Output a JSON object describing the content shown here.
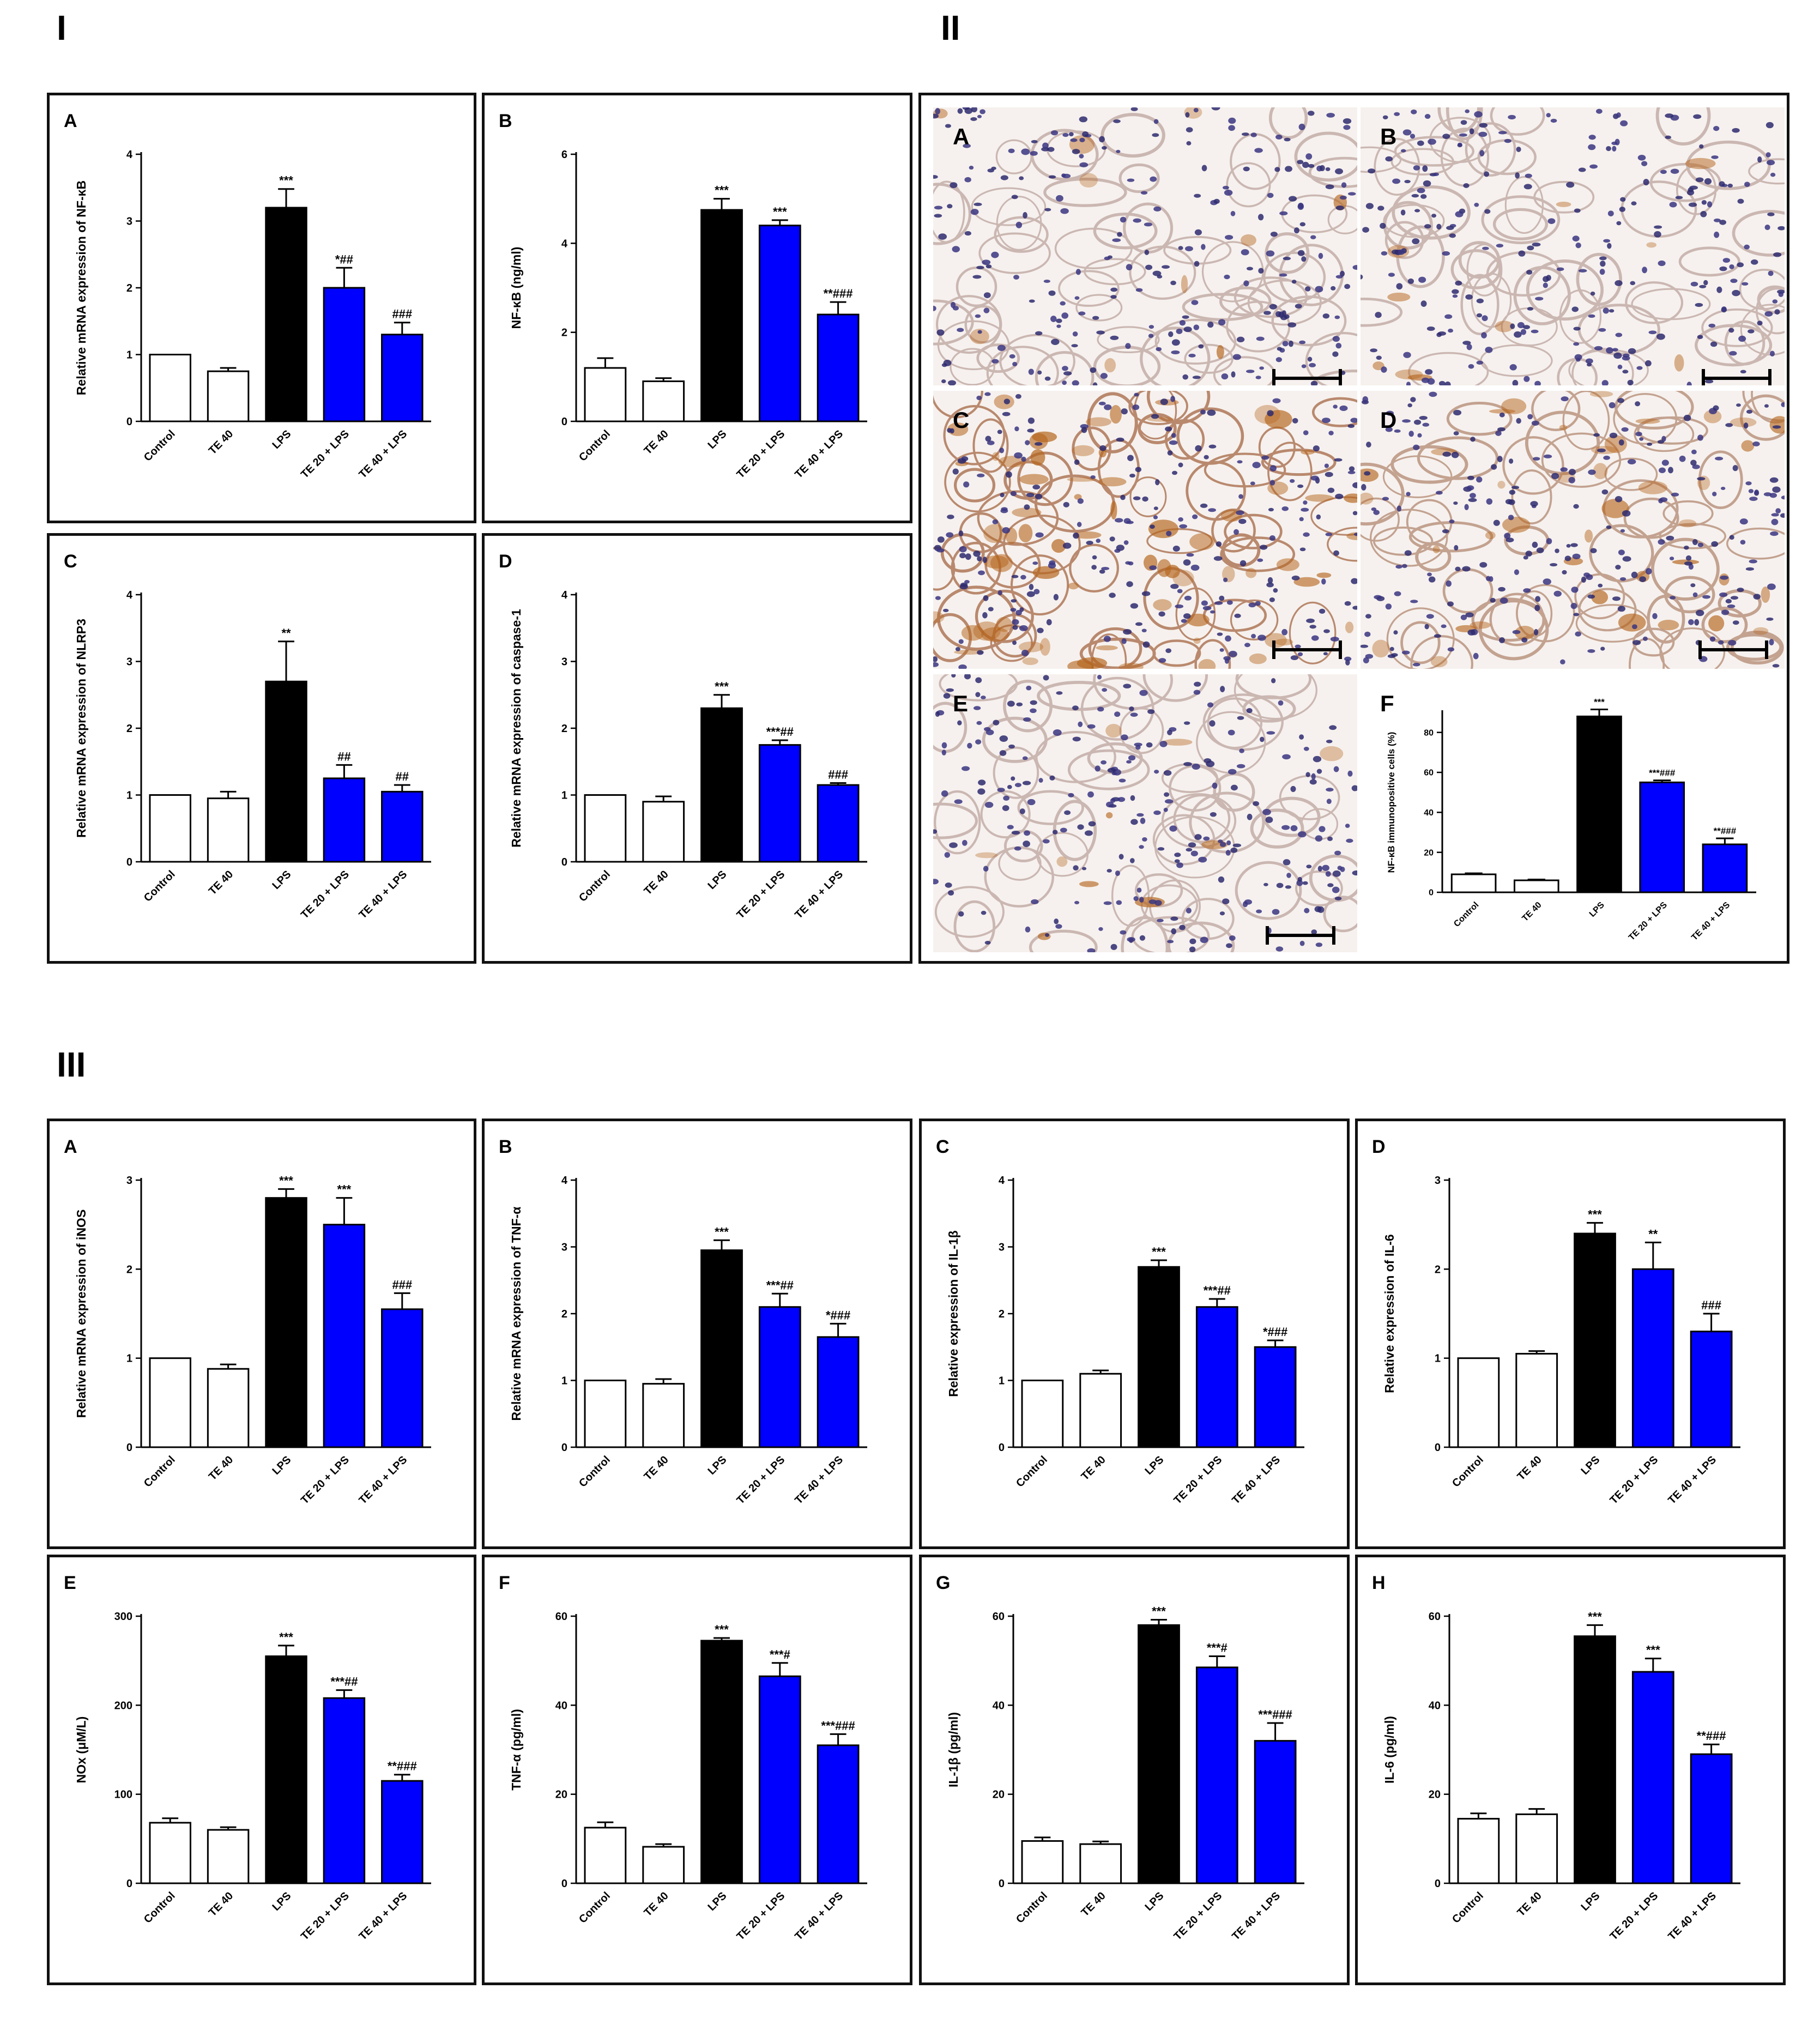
{
  "figure": {
    "section_labels": [
      "I",
      "II",
      "III"
    ]
  },
  "colors": {
    "control": "#ffffff",
    "te40": "#ffffff",
    "lps": "#000000",
    "te20lps": "#0000ff",
    "te40lps": "#0000ff",
    "axis": "#000000"
  },
  "categories": [
    "Control",
    "TE 40",
    "LPS",
    "TE 20 + LPS",
    "TE 40 + LPS"
  ],
  "section2": {
    "micro_panels": [
      {
        "letter": "A",
        "stain": "low"
      },
      {
        "letter": "B",
        "stain": "low"
      },
      {
        "letter": "C",
        "stain": "high"
      },
      {
        "letter": "D",
        "stain": "medium"
      },
      {
        "letter": "E",
        "stain": "low"
      }
    ]
  },
  "chart_data": [
    {
      "id": "I-A",
      "letter": "A",
      "type": "bar",
      "ylabel": "Relative mRNA expression of NF-κB",
      "ylim": [
        0,
        4
      ],
      "yticks": [
        0,
        1,
        2,
        3,
        4
      ],
      "categories": [
        "Control",
        "TE 40",
        "LPS",
        "TE 20 + LPS",
        "TE 40 + LPS"
      ],
      "values": [
        1.0,
        0.75,
        3.2,
        2.0,
        1.3
      ],
      "errors": [
        0,
        0.05,
        0.28,
        0.3,
        0.18
      ],
      "annotations": [
        "",
        "",
        "***",
        "*##",
        "###"
      ]
    },
    {
      "id": "I-B",
      "letter": "B",
      "type": "bar",
      "ylabel": "NF-κB (ng/ml)",
      "ylim": [
        0,
        6
      ],
      "yticks": [
        0,
        2,
        4,
        6
      ],
      "categories": [
        "Control",
        "TE 40",
        "LPS",
        "TE 20 + LPS",
        "TE 40 + LPS"
      ],
      "values": [
        1.2,
        0.9,
        4.75,
        4.4,
        2.4
      ],
      "errors": [
        0.22,
        0.07,
        0.25,
        0.12,
        0.28
      ],
      "annotations": [
        "",
        "",
        "***",
        "***",
        "**###"
      ]
    },
    {
      "id": "I-C",
      "letter": "C",
      "type": "bar",
      "ylabel": "Relative mRNA expression of NLRP3",
      "ylim": [
        0,
        4
      ],
      "yticks": [
        0,
        1,
        2,
        3,
        4
      ],
      "categories": [
        "Control",
        "TE 40",
        "LPS",
        "TE 20 + LPS",
        "TE 40 + LPS"
      ],
      "values": [
        1.0,
        0.95,
        2.7,
        1.25,
        1.05
      ],
      "errors": [
        0,
        0.1,
        0.6,
        0.2,
        0.1
      ],
      "annotations": [
        "",
        "",
        "**",
        "##",
        "##"
      ]
    },
    {
      "id": "I-D",
      "letter": "D",
      "type": "bar",
      "ylabel": "Relative mRNA expression of caspase-1",
      "ylim": [
        0,
        4
      ],
      "yticks": [
        0,
        1,
        2,
        3,
        4
      ],
      "categories": [
        "Control",
        "TE 40",
        "LPS",
        "TE 20 + LPS",
        "TE 40 + LPS"
      ],
      "values": [
        1.0,
        0.9,
        2.3,
        1.75,
        1.15
      ],
      "errors": [
        0,
        0.08,
        0.2,
        0.07,
        0.03
      ],
      "annotations": [
        "",
        "",
        "***",
        "***##",
        "###"
      ]
    },
    {
      "id": "II-F",
      "letter": "F",
      "type": "bar",
      "ylabel": "NF-κB immunopositive cells (%)",
      "ylim": [
        0,
        90
      ],
      "yticks": [
        0,
        20,
        40,
        60,
        80
      ],
      "categories": [
        "Control",
        "TE 40",
        "LPS",
        "TE 20 + LPS",
        "TE 40 + LPS"
      ],
      "values": [
        9,
        6,
        88,
        55,
        24
      ],
      "errors": [
        0.5,
        0.4,
        3.5,
        1.0,
        3.0
      ],
      "annotations": [
        "",
        "",
        "***",
        "***###",
        "**###"
      ]
    },
    {
      "id": "III-A",
      "letter": "A",
      "type": "bar",
      "ylabel": "Relative mRNA expression of iNOS",
      "ylim": [
        0,
        3
      ],
      "yticks": [
        0,
        1,
        2,
        3
      ],
      "categories": [
        "Control",
        "TE 40",
        "LPS",
        "TE 20 + LPS",
        "TE 40 + LPS"
      ],
      "values": [
        1.0,
        0.88,
        2.8,
        2.5,
        1.55
      ],
      "errors": [
        0,
        0.05,
        0.1,
        0.3,
        0.18
      ],
      "annotations": [
        "",
        "",
        "***",
        "***",
        "###"
      ]
    },
    {
      "id": "III-B",
      "letter": "B",
      "type": "bar",
      "ylabel": "Relative mRNA expression of TNF-α",
      "ylim": [
        0,
        4
      ],
      "yticks": [
        0,
        1,
        2,
        3,
        4
      ],
      "categories": [
        "Control",
        "TE 40",
        "LPS",
        "TE 20 + LPS",
        "TE 40 + LPS"
      ],
      "values": [
        1.0,
        0.95,
        2.95,
        2.1,
        1.65
      ],
      "errors": [
        0,
        0.07,
        0.15,
        0.2,
        0.2
      ],
      "annotations": [
        "",
        "",
        "***",
        "***##",
        "*###"
      ]
    },
    {
      "id": "III-C",
      "letter": "C",
      "type": "bar",
      "ylabel": "Relative expression of IL-1β",
      "ylim": [
        0,
        4
      ],
      "yticks": [
        0,
        1,
        2,
        3,
        4
      ],
      "categories": [
        "Control",
        "TE 40",
        "LPS",
        "TE 20 + LPS",
        "TE 40 + LPS"
      ],
      "values": [
        1.0,
        1.1,
        2.7,
        2.1,
        1.5
      ],
      "errors": [
        0,
        0.05,
        0.1,
        0.12,
        0.1
      ],
      "annotations": [
        "",
        "",
        "***",
        "***##",
        "*###"
      ]
    },
    {
      "id": "III-D",
      "letter": "D",
      "type": "bar",
      "ylabel": "Relative expression of IL-6",
      "ylim": [
        0,
        3
      ],
      "yticks": [
        0,
        1,
        2,
        3
      ],
      "categories": [
        "Control",
        "TE 40",
        "LPS",
        "TE 20 + LPS",
        "TE 40 + LPS"
      ],
      "values": [
        1.0,
        1.05,
        2.4,
        2.0,
        1.3
      ],
      "errors": [
        0,
        0.03,
        0.12,
        0.3,
        0.2
      ],
      "annotations": [
        "",
        "",
        "***",
        "**",
        "###"
      ]
    },
    {
      "id": "III-E",
      "letter": "E",
      "type": "bar",
      "ylabel": "NOx (μM/L)",
      "ylim": [
        0,
        300
      ],
      "yticks": [
        0,
        100,
        200,
        300
      ],
      "categories": [
        "Control",
        "TE 40",
        "LPS",
        "TE 20 + LPS",
        "TE 40 + LPS"
      ],
      "values": [
        68,
        60,
        255,
        208,
        115
      ],
      "errors": [
        5,
        3,
        12,
        9,
        7
      ],
      "annotations": [
        "",
        "",
        "***",
        "***##",
        "**###"
      ]
    },
    {
      "id": "III-F",
      "letter": "F",
      "type": "bar",
      "ylabel": "TNF-α (pg/ml)",
      "ylim": [
        0,
        60
      ],
      "yticks": [
        0,
        20,
        40,
        60
      ],
      "categories": [
        "Control",
        "TE 40",
        "LPS",
        "TE 20 + LPS",
        "TE 40 + LPS"
      ],
      "values": [
        12.5,
        8.2,
        54.5,
        46.5,
        31
      ],
      "errors": [
        1.2,
        0.6,
        0.6,
        3.0,
        2.5
      ],
      "annotations": [
        "",
        "",
        "***",
        "***#",
        "***###"
      ]
    },
    {
      "id": "III-G",
      "letter": "G",
      "type": "bar",
      "ylabel": "IL-1β (pg/ml)",
      "ylim": [
        0,
        60
      ],
      "yticks": [
        0,
        20,
        40,
        60
      ],
      "categories": [
        "Control",
        "TE 40",
        "LPS",
        "TE 20 + LPS",
        "TE 40 + LPS"
      ],
      "values": [
        9.5,
        8.8,
        58,
        48.5,
        32
      ],
      "errors": [
        0.8,
        0.6,
        1.2,
        2.5,
        4.0
      ],
      "annotations": [
        "",
        "",
        "***",
        "***#",
        "***###"
      ]
    },
    {
      "id": "III-H",
      "letter": "H",
      "type": "bar",
      "ylabel": "IL-6 (pg/ml)",
      "ylim": [
        0,
        60
      ],
      "yticks": [
        0,
        20,
        40,
        60
      ],
      "categories": [
        "Control",
        "TE 40",
        "LPS",
        "TE 20 + LPS",
        "TE 40 + LPS"
      ],
      "values": [
        14.5,
        15.5,
        55.5,
        47.5,
        29
      ],
      "errors": [
        1.2,
        1.2,
        2.5,
        3.0,
        2.2
      ],
      "annotations": [
        "",
        "",
        "***",
        "***",
        "**###"
      ]
    }
  ]
}
